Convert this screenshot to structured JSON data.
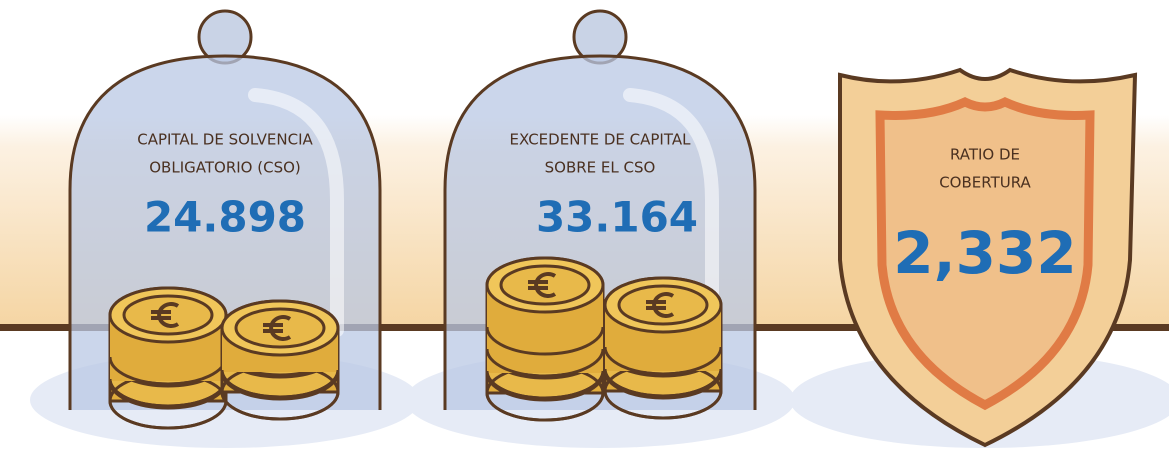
{
  "items": [
    {
      "label": [
        "CAPITAL DE SOLVENCIA",
        "OBLIGATORIO (CSO)"
      ],
      "value": "24.898"
    },
    {
      "label": [
        "EXCEDENTE DE CAPITAL",
        "SOBRE EL CSO"
      ],
      "value": "33.164"
    },
    {
      "label": [
        "RATIO DE",
        "COBERTURA"
      ],
      "value": "2,332"
    }
  ]
}
